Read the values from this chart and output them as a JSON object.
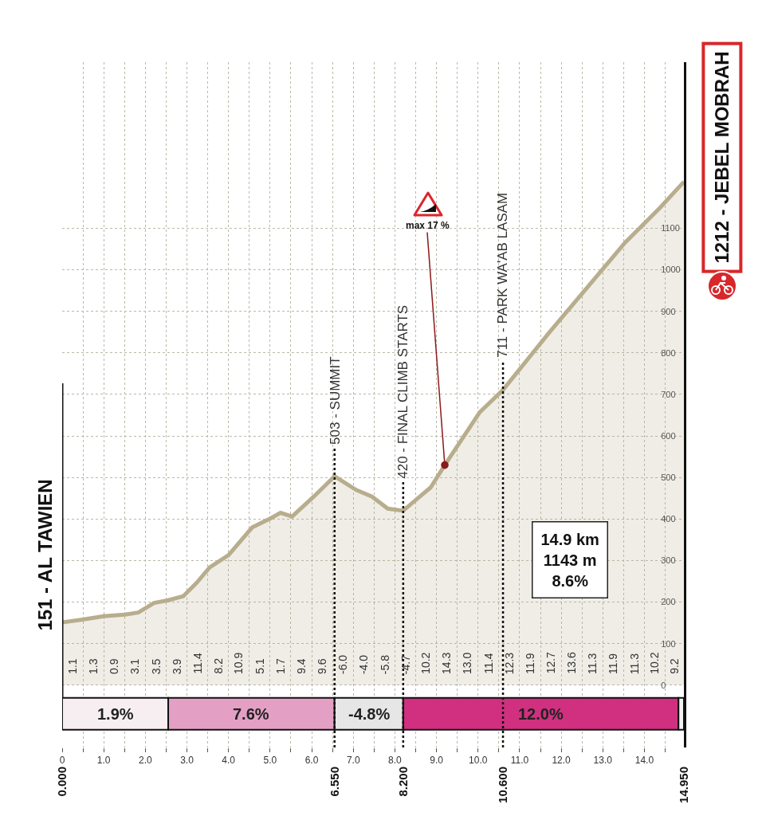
{
  "chart_data": {
    "type": "area",
    "x": [
      0,
      0.49,
      1.0,
      1.51,
      1.83,
      2.21,
      2.53,
      2.91,
      3.23,
      3.55,
      4.0,
      4.57,
      5.02,
      5.25,
      5.53,
      6.05,
      6.55,
      7.07,
      7.45,
      7.83,
      8.2,
      8.6,
      8.86,
      9.2,
      10.04,
      10.6,
      11.71,
      12.62,
      13.54,
      14.37,
      14.95
    ],
    "series": [
      {
        "color": "#b8ad8c",
        "values": [
          151,
          158,
          166,
          170,
          175,
          198,
          204,
          214,
          246,
          284,
          313,
          380,
          402,
          415,
          406,
          454,
          503,
          470,
          454,
          425,
          420,
          454,
          476,
          530,
          657,
          711,
          849,
          957,
          1066,
          1149,
          1212
        ]
      }
    ],
    "xlim": [
      0,
      14.95
    ],
    "xticks": [
      0,
      {
        "value": 0.5,
        "label": null
      },
      {
        "value": 1,
        "label": "1.0"
      },
      {
        "value": 1.5,
        "label": null
      },
      {
        "value": 2,
        "label": "2.0"
      },
      {
        "value": 2.5,
        "label": null
      },
      {
        "value": 3,
        "label": "3.0"
      },
      {
        "value": 3.5,
        "label": null
      },
      {
        "value": 4,
        "label": "4.0"
      },
      {
        "value": 4.5,
        "label": null
      },
      {
        "value": 5,
        "label": "5.0"
      },
      {
        "value": 5.5,
        "label": null
      },
      {
        "value": 6,
        "label": "6.0"
      },
      {
        "value": 6.5,
        "label": null
      },
      {
        "value": 7,
        "label": "7.0"
      },
      {
        "value": 7.5,
        "label": null
      },
      {
        "value": 8,
        "label": "8.0"
      },
      {
        "value": 8.5,
        "label": null
      },
      {
        "value": 9,
        "label": "9.0"
      },
      {
        "value": 9.5,
        "label": null
      },
      {
        "value": 10,
        "label": "10.0"
      },
      {
        "value": 10.5,
        "label": null
      },
      {
        "value": 11,
        "label": "11.0"
      },
      {
        "value": 11.5,
        "label": null
      },
      {
        "value": 12,
        "label": "12.0"
      },
      {
        "value": 12.5,
        "label": null
      },
      {
        "value": 13,
        "label": "13.0"
      },
      {
        "value": 13.5,
        "label": null
      },
      {
        "value": 14,
        "label": "14.0"
      },
      {
        "value": 14.5,
        "label": null
      }
    ],
    "x2lim": [
      0,
      14.95
    ],
    "x2ticks": [
      {
        "value": 0,
        "label": "0.000"
      },
      {
        "value": 6.55,
        "label": "6.550"
      },
      {
        "value": 8.2,
        "label": "8.200"
      },
      {
        "value": 10.6,
        "label": "10.600"
      },
      {
        "value": 14.95,
        "label": "14.950"
      }
    ],
    "ylim": [
      -150,
      1500
    ],
    "yticks": [
      0,
      100,
      200,
      300,
      400,
      500,
      600,
      700,
      800,
      900,
      1000,
      1100
    ],
    "grid": true,
    "ref_lines": [
      {
        "axis": "x",
        "value": 6.55,
        "label": "503 - SUMMIT",
        "line_style": "dotted"
      },
      {
        "axis": "x",
        "value": 8.2,
        "label": "420 - FINAL CLIMB STARTS",
        "line_style": "dotted"
      },
      {
        "axis": "x",
        "value": 10.6,
        "label": "711 - PARK WA'AB LASAM",
        "line_style": "dotted"
      }
    ],
    "bands": [
      {
        "axis": "x",
        "from": 0,
        "to": 2.55,
        "label": "1.9%",
        "color": "#f7eef2"
      },
      {
        "axis": "x",
        "from": 2.55,
        "to": 6.55,
        "label": "7.6%",
        "color": "#e4a0c4"
      },
      {
        "axis": "x",
        "from": 6.55,
        "to": 8.2,
        "label": "-4.8%",
        "color": "#e6e6e6"
      },
      {
        "axis": "x",
        "from": 8.2,
        "to": 14.82,
        "label": "12.0%",
        "color": "#d0307f"
      },
      {
        "axis": "x",
        "from": 14.82,
        "to": 14.95,
        "label": null,
        "color": "#f2f2f2"
      }
    ],
    "annotations": [
      {
        "text": "151 - AL TAWIEN",
        "x": 0,
        "y": 151
      },
      {
        "text": "1212 - JEBEL MOBRAH",
        "x": 14.95,
        "y": 1212
      },
      {
        "text": "max 17 %",
        "x": 9.2,
        "y": 530
      },
      "14.9 km\n1143 m\n8.6%",
      {
        "text": "1.1",
        "x": 0.25,
        "y": 0
      },
      {
        "text": "1.3",
        "x": 0.75,
        "y": 0
      },
      {
        "text": "0.9",
        "x": 1.25,
        "y": 0
      },
      {
        "text": "3.1",
        "x": 1.75,
        "y": 0
      },
      {
        "text": "3.5",
        "x": 2.25,
        "y": 0
      },
      {
        "text": "3.9",
        "x": 2.75,
        "y": 0
      },
      {
        "text": "11.4",
        "x": 3.25,
        "y": 0
      },
      {
        "text": "8.2",
        "x": 3.75,
        "y": 0
      },
      {
        "text": "10.9",
        "x": 4.25,
        "y": 0
      },
      {
        "text": "5.1",
        "x": 4.75,
        "y": 0
      },
      {
        "text": "1.7",
        "x": 5.25,
        "y": 0
      },
      {
        "text": "9.4",
        "x": 5.75,
        "y": 0
      },
      {
        "text": "9.6",
        "x": 6.25,
        "y": 0
      },
      {
        "text": "-6.0",
        "x": 6.75,
        "y": 0
      },
      {
        "text": "-4.0",
        "x": 7.25,
        "y": 0
      },
      {
        "text": "-5.8",
        "x": 7.75,
        "y": 0
      },
      {
        "text": "-4.7",
        "x": 8.25,
        "y": 0
      },
      {
        "text": "10.2",
        "x": 8.75,
        "y": 0
      },
      {
        "text": "14.3",
        "x": 9.25,
        "y": 0
      },
      {
        "text": "13.0",
        "x": 9.75,
        "y": 0
      },
      {
        "text": "11.4",
        "x": 10.25,
        "y": 0
      },
      {
        "text": "12.3",
        "x": 10.75,
        "y": 0
      },
      {
        "text": "11.9",
        "x": 11.25,
        "y": 0
      },
      {
        "text": "12.7",
        "x": 11.75,
        "y": 0
      },
      {
        "text": "13.6",
        "x": 12.25,
        "y": 0
      },
      {
        "text": "11.3",
        "x": 12.75,
        "y": 0
      },
      {
        "text": "11.9",
        "x": 13.25,
        "y": 0
      },
      {
        "text": "11.3",
        "x": 13.75,
        "y": 0
      },
      {
        "text": "10.2",
        "x": 14.25,
        "y": 0
      },
      {
        "text": "9.2",
        "x": 14.72,
        "y": 0
      }
    ]
  }
}
